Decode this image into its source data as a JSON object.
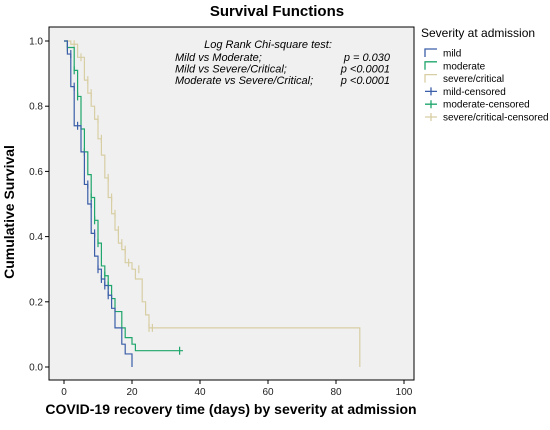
{
  "chart_data": {
    "type": "line",
    "title": "Survival Functions",
    "xlabel": "COVID-19 recovery time (days) by severity at admission",
    "ylabel": "Cumulative Survival",
    "xlim": [
      0,
      100
    ],
    "ylim": [
      0,
      1.0
    ],
    "xticks": [
      "0",
      "20",
      "40",
      "60",
      "80",
      "100"
    ],
    "yticks": [
      "0.0",
      "0.2",
      "0.4",
      "0.6",
      "0.8",
      "1.0"
    ],
    "grid": false,
    "legend": {
      "title": "Severity at admission",
      "position": "right",
      "entries": [
        "mild",
        "moderate",
        "severe/critical",
        "mild-censored",
        "moderate-censored",
        "severe/critical-censored"
      ]
    },
    "annotations": {
      "heading": "Log Rank Chi-square test:",
      "rows": [
        {
          "label": "Mild vs Moderate;",
          "p": "p  = 0.030"
        },
        {
          "label": "Mild vs Severe/Critical;",
          "p": "p <0.0001"
        },
        {
          "label": "Moderate vs Severe/Critical;",
          "p": "p <0.0001"
        }
      ]
    },
    "series": [
      {
        "name": "mild",
        "color": "#3a5ea8",
        "steps": [
          [
            0,
            1.0
          ],
          [
            1,
            0.96
          ],
          [
            2,
            0.86
          ],
          [
            3,
            0.74
          ],
          [
            5,
            0.66
          ],
          [
            6,
            0.56
          ],
          [
            7,
            0.5
          ],
          [
            8,
            0.41
          ],
          [
            9,
            0.34
          ],
          [
            10,
            0.3
          ],
          [
            11,
            0.27
          ],
          [
            12,
            0.25
          ],
          [
            13,
            0.22
          ],
          [
            14,
            0.18
          ],
          [
            15,
            0.12
          ],
          [
            17,
            0.07
          ],
          [
            18,
            0.04
          ],
          [
            20,
            0.0
          ]
        ],
        "end": 20,
        "censored": [
          [
            2,
            0.96
          ],
          [
            3,
            0.86
          ],
          [
            4,
            0.74
          ],
          [
            7,
            0.56
          ],
          [
            8,
            0.5
          ],
          [
            9,
            0.41
          ],
          [
            10,
            0.3
          ],
          [
            11,
            0.27
          ],
          [
            12,
            0.25
          ],
          [
            13,
            0.22
          ]
        ]
      },
      {
        "name": "moderate",
        "color": "#1fa66c",
        "steps": [
          [
            0,
            1.0
          ],
          [
            1,
            0.98
          ],
          [
            3,
            0.91
          ],
          [
            4,
            0.83
          ],
          [
            5,
            0.73
          ],
          [
            6,
            0.66
          ],
          [
            7,
            0.59
          ],
          [
            8,
            0.52
          ],
          [
            9,
            0.45
          ],
          [
            10,
            0.38
          ],
          [
            11,
            0.31
          ],
          [
            12,
            0.28
          ],
          [
            13,
            0.25
          ],
          [
            14,
            0.21
          ],
          [
            15,
            0.17
          ],
          [
            17,
            0.12
          ],
          [
            18,
            0.09
          ],
          [
            20,
            0.07
          ],
          [
            21,
            0.05
          ]
        ],
        "end": 35,
        "censored": [
          [
            1,
            0.98
          ],
          [
            3,
            0.91
          ],
          [
            4,
            0.83
          ],
          [
            6,
            0.66
          ],
          [
            8,
            0.52
          ],
          [
            9,
            0.45
          ],
          [
            10,
            0.38
          ],
          [
            12,
            0.28
          ],
          [
            13,
            0.25
          ],
          [
            34,
            0.05
          ]
        ]
      },
      {
        "name": "severe/critical",
        "color": "#d8cea4",
        "steps": [
          [
            0,
            1.0
          ],
          [
            2,
            0.99
          ],
          [
            4,
            0.95
          ],
          [
            6,
            0.88
          ],
          [
            7,
            0.84
          ],
          [
            8,
            0.8
          ],
          [
            9,
            0.76
          ],
          [
            10,
            0.7
          ],
          [
            11,
            0.65
          ],
          [
            12,
            0.58
          ],
          [
            13,
            0.52
          ],
          [
            14,
            0.47
          ],
          [
            15,
            0.42
          ],
          [
            16,
            0.38
          ],
          [
            17,
            0.36
          ],
          [
            18,
            0.32
          ],
          [
            20,
            0.3
          ],
          [
            21,
            0.27
          ],
          [
            23,
            0.2
          ],
          [
            24,
            0.16
          ],
          [
            25,
            0.12
          ]
        ],
        "end": 87,
        "censored": [
          [
            1,
            0.99
          ],
          [
            3,
            0.99
          ],
          [
            5,
            0.95
          ],
          [
            7,
            0.88
          ],
          [
            8,
            0.84
          ],
          [
            10,
            0.76
          ],
          [
            11,
            0.7
          ],
          [
            13,
            0.58
          ],
          [
            14,
            0.52
          ],
          [
            15,
            0.47
          ],
          [
            16,
            0.42
          ],
          [
            17,
            0.38
          ],
          [
            18,
            0.36
          ],
          [
            19,
            0.32
          ],
          [
            22,
            0.3
          ],
          [
            25,
            0.12
          ],
          [
            26,
            0.12
          ]
        ]
      }
    ]
  }
}
